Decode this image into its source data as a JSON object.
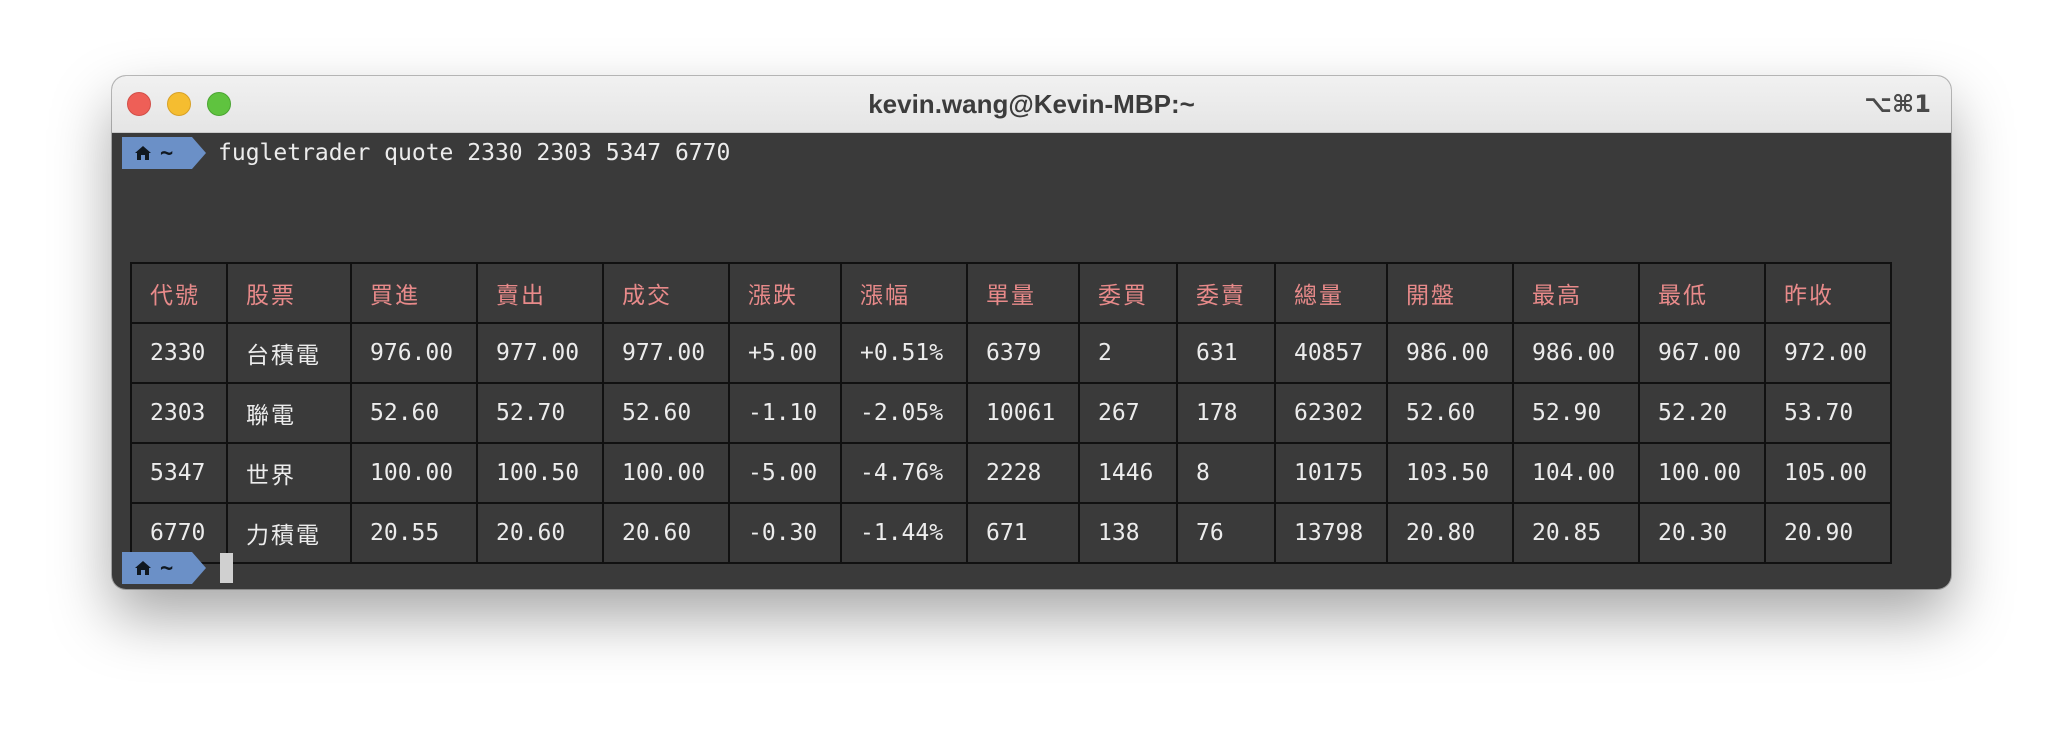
{
  "window": {
    "title": "kevin.wang@Kevin-MBP:~",
    "shortcut": "⌥⌘1"
  },
  "prompt": {
    "cwd": "~",
    "command": "fugletrader quote 2330 2303 5347 6770"
  },
  "colors": {
    "header_text": "#e88a8a",
    "prompt_badge": "#6b90c7",
    "terminal_bg": "#3a3a3a"
  },
  "quote_table": {
    "headers": [
      "代號",
      "股票",
      "買進",
      "賣出",
      "成交",
      "漲跌",
      "漲幅",
      "單量",
      "委買",
      "委賣",
      "總量",
      "開盤",
      "最高",
      "最低",
      "昨收"
    ],
    "rows": [
      [
        "2330",
        "台積電",
        "976.00",
        "977.00",
        "977.00",
        "+5.00",
        "+0.51%",
        "6379",
        "2",
        "631",
        "40857",
        "986.00",
        "986.00",
        "967.00",
        "972.00"
      ],
      [
        "2303",
        "聯電",
        "52.60",
        "52.70",
        "52.60",
        "-1.10",
        "-2.05%",
        "10061",
        "267",
        "178",
        "62302",
        "52.60",
        "52.90",
        "52.20",
        "53.70"
      ],
      [
        "5347",
        "世界",
        "100.00",
        "100.50",
        "100.00",
        "-5.00",
        "-4.76%",
        "2228",
        "1446",
        "8",
        "10175",
        "103.50",
        "104.00",
        "100.00",
        "105.00"
      ],
      [
        "6770",
        "力積電",
        "20.55",
        "20.60",
        "20.60",
        "-0.30",
        "-1.44%",
        "671",
        "138",
        "76",
        "13798",
        "20.80",
        "20.85",
        "20.30",
        "20.90"
      ]
    ]
  }
}
